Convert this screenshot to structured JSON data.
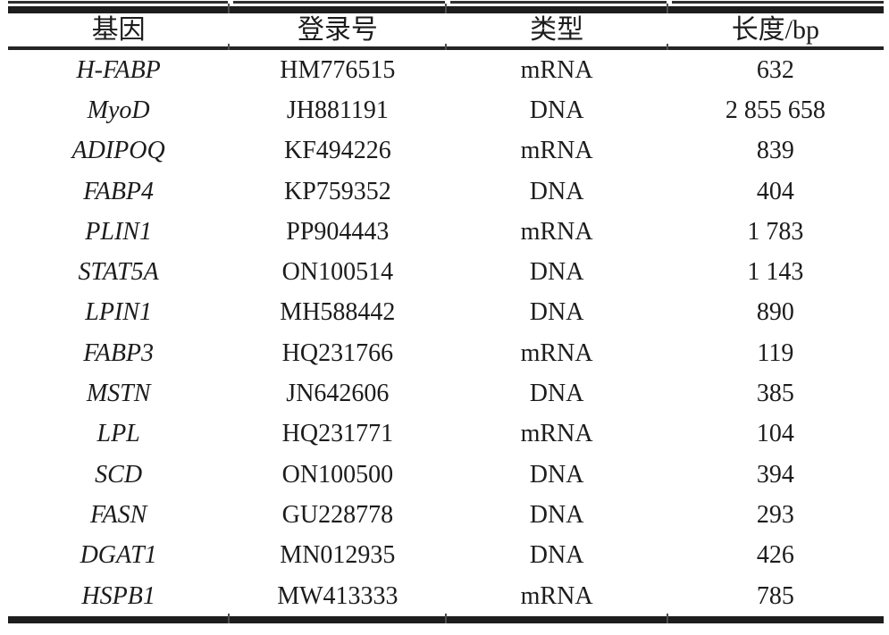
{
  "table": {
    "columns": [
      {
        "key": "gene",
        "label": "基因"
      },
      {
        "key": "accession",
        "label": "登录号"
      },
      {
        "key": "type",
        "label": "类型"
      },
      {
        "key": "length",
        "label": "长度/bp"
      }
    ],
    "rows": [
      {
        "gene": "H-FABP",
        "accession": "HM776515",
        "type": "mRNA",
        "length": "632"
      },
      {
        "gene": "MyoD",
        "accession": "JH881191",
        "type": "DNA",
        "length": "2 855 658"
      },
      {
        "gene": "ADIPOQ",
        "accession": "KF494226",
        "type": "mRNA",
        "length": "839"
      },
      {
        "gene": "FABP4",
        "accession": "KP759352",
        "type": "DNA",
        "length": "404"
      },
      {
        "gene": "PLIN1",
        "accession": "PP904443",
        "type": "mRNA",
        "length": "1 783"
      },
      {
        "gene": "STAT5A",
        "accession": "ON100514",
        "type": "DNA",
        "length": "1 143"
      },
      {
        "gene": "LPIN1",
        "accession": "MH588442",
        "type": "DNA",
        "length": "890"
      },
      {
        "gene": "FABP3",
        "accession": "HQ231766",
        "type": "mRNA",
        "length": "119"
      },
      {
        "gene": "MSTN",
        "accession": "JN642606",
        "type": "DNA",
        "length": "385"
      },
      {
        "gene": "LPL",
        "accession": "HQ231771",
        "type": "mRNA",
        "length": "104"
      },
      {
        "gene": "SCD",
        "accession": "ON100500",
        "type": "DNA",
        "length": "394"
      },
      {
        "gene": "FASN",
        "accession": "GU228778",
        "type": "DNA",
        "length": "293"
      },
      {
        "gene": "DGAT1",
        "accession": "MN012935",
        "type": "DNA",
        "length": "426"
      },
      {
        "gene": "HSPB1",
        "accession": "MW413333",
        "type": "mRNA",
        "length": "785"
      }
    ],
    "colors": {
      "text": "#1c1c1c",
      "rule": "#1d1d1d",
      "background": "#ffffff"
    }
  }
}
